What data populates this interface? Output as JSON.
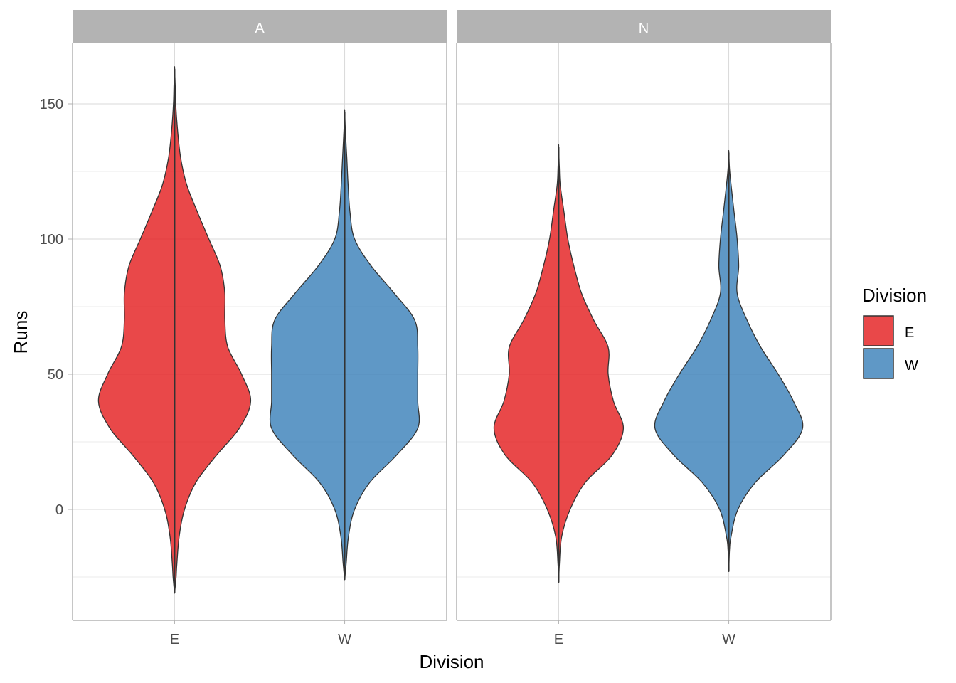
{
  "chart_data": {
    "type": "violin",
    "xlabel": "Division",
    "ylabel": "Runs",
    "ylim": [
      -41,
      173
    ],
    "y_ticks": [
      0,
      50,
      100,
      150
    ],
    "y_minor_ticks": [
      -25,
      25,
      75,
      125
    ],
    "categories": [
      "E",
      "W"
    ],
    "facets": [
      {
        "label": "A",
        "violins": [
          {
            "category": "E",
            "range": [
              -31,
              163
            ],
            "density": [
              [
                -31,
                0.0
              ],
              [
                -25,
                0.02
              ],
              [
                -20,
                0.03
              ],
              [
                -10,
                0.06
              ],
              [
                0,
                0.13
              ],
              [
                10,
                0.28
              ],
              [
                20,
                0.55
              ],
              [
                30,
                0.85
              ],
              [
                40,
                1.0
              ],
              [
                50,
                0.88
              ],
              [
                60,
                0.7
              ],
              [
                70,
                0.66
              ],
              [
                80,
                0.66
              ],
              [
                90,
                0.6
              ],
              [
                100,
                0.45
              ],
              [
                110,
                0.3
              ],
              [
                120,
                0.16
              ],
              [
                130,
                0.08
              ],
              [
                140,
                0.04
              ],
              [
                150,
                0.015
              ],
              [
                157,
                0.008
              ],
              [
                163,
                0.0
              ]
            ]
          },
          {
            "category": "W",
            "range": [
              -26,
              147
            ],
            "density": [
              [
                -26,
                0.0
              ],
              [
                -20,
                0.02
              ],
              [
                -10,
                0.05
              ],
              [
                0,
                0.13
              ],
              [
                10,
                0.33
              ],
              [
                20,
                0.68
              ],
              [
                30,
                0.96
              ],
              [
                40,
                0.96
              ],
              [
                50,
                0.96
              ],
              [
                60,
                0.96
              ],
              [
                70,
                0.92
              ],
              [
                80,
                0.65
              ],
              [
                90,
                0.35
              ],
              [
                100,
                0.13
              ],
              [
                110,
                0.07
              ],
              [
                120,
                0.045
              ],
              [
                130,
                0.028
              ],
              [
                140,
                0.01
              ],
              [
                147,
                0.0
              ]
            ]
          }
        ]
      },
      {
        "label": "N",
        "violins": [
          {
            "category": "E",
            "range": [
              -27,
              134
            ],
            "density": [
              [
                -27,
                0.0
              ],
              [
                -20,
                0.01
              ],
              [
                -10,
                0.04
              ],
              [
                0,
                0.15
              ],
              [
                10,
                0.35
              ],
              [
                20,
                0.7
              ],
              [
                30,
                0.85
              ],
              [
                40,
                0.72
              ],
              [
                50,
                0.65
              ],
              [
                60,
                0.65
              ],
              [
                70,
                0.46
              ],
              [
                80,
                0.3
              ],
              [
                90,
                0.2
              ],
              [
                100,
                0.12
              ],
              [
                110,
                0.07
              ],
              [
                120,
                0.02
              ],
              [
                127,
                0.008
              ],
              [
                134,
                0.0
              ]
            ]
          },
          {
            "category": "W",
            "range": [
              -23,
              132
            ],
            "density": [
              [
                -23,
                0.0
              ],
              [
                -15,
                0.01
              ],
              [
                -10,
                0.03
              ],
              [
                0,
                0.12
              ],
              [
                10,
                0.35
              ],
              [
                20,
                0.72
              ],
              [
                30,
                0.97
              ],
              [
                40,
                0.85
              ],
              [
                50,
                0.65
              ],
              [
                60,
                0.42
              ],
              [
                70,
                0.24
              ],
              [
                80,
                0.11
              ],
              [
                90,
                0.13
              ],
              [
                100,
                0.11
              ],
              [
                110,
                0.07
              ],
              [
                120,
                0.03
              ],
              [
                126,
                0.01
              ],
              [
                132,
                0.0
              ]
            ]
          }
        ]
      }
    ],
    "legend": {
      "title": "Division",
      "position": "right",
      "entries": [
        {
          "label": "E",
          "color": "#e41a1c"
        },
        {
          "label": "W",
          "color": "#377eb8"
        }
      ]
    },
    "fill_opacity": 0.8,
    "outline_color": "#333333",
    "grid": true
  }
}
